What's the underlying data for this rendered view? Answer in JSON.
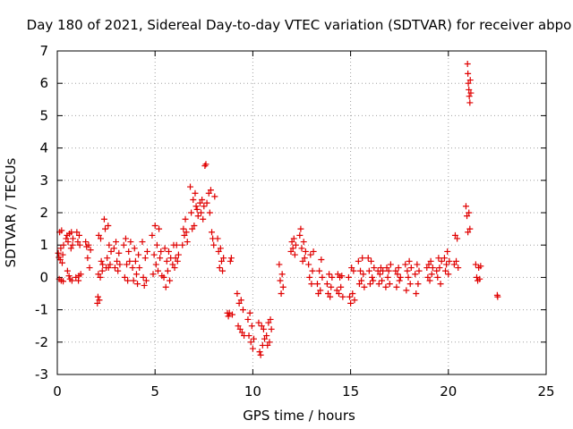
{
  "chart_data": {
    "type": "scatter",
    "title": "Day 180 of 2021, Sidereal Day-to-day VTEC variation (SDTVAR) for receiver abpo",
    "xlabel": "GPS time / hours",
    "ylabel": "SDTVAR / TECUs",
    "xlim": [
      0,
      25
    ],
    "ylim": [
      -3,
      7
    ],
    "grid": true,
    "x_ticks": [
      "0",
      "5",
      "10",
      "15",
      "20",
      "25"
    ],
    "y_ticks": [
      "-3",
      "-2",
      "-1",
      "0",
      "1",
      "2",
      "3",
      "4",
      "5",
      "6",
      "7"
    ],
    "marker": "plus",
    "marker_color": "#e00000",
    "series": [
      {
        "name": "SDTVAR",
        "points": [
          [
            0.05,
            0.75
          ],
          [
            0.08,
            0.62
          ],
          [
            0.1,
            -0.05
          ],
          [
            0.12,
            1.4
          ],
          [
            0.15,
            0.55
          ],
          [
            0.18,
            0.9
          ],
          [
            0.2,
            -0.1
          ],
          [
            0.22,
            1.45
          ],
          [
            0.25,
            0.45
          ],
          [
            0.28,
            0.7
          ],
          [
            0.3,
            -0.12
          ],
          [
            0.32,
            1.0
          ],
          [
            0.45,
            1.2
          ],
          [
            0.5,
            1.3
          ],
          [
            0.52,
            0.2
          ],
          [
            0.55,
            1.1
          ],
          [
            0.6,
            0.05
          ],
          [
            0.62,
            1.35
          ],
          [
            0.65,
            -0.05
          ],
          [
            0.7,
            0.9
          ],
          [
            0.72,
            1.4
          ],
          [
            0.75,
            -0.1
          ],
          [
            0.78,
            1.0
          ],
          [
            0.8,
            1.2
          ],
          [
            0.95,
            0.0
          ],
          [
            1.0,
            1.4
          ],
          [
            1.05,
            1.1
          ],
          [
            1.08,
            -0.1
          ],
          [
            1.1,
            0.05
          ],
          [
            1.12,
            1.3
          ],
          [
            1.15,
            1.0
          ],
          [
            1.2,
            0.1
          ],
          [
            1.45,
            1.1
          ],
          [
            1.5,
            0.95
          ],
          [
            1.55,
            0.6
          ],
          [
            1.6,
            1.0
          ],
          [
            1.65,
            0.3
          ],
          [
            1.7,
            0.85
          ],
          [
            2.05,
            -0.8
          ],
          [
            2.08,
            -0.6
          ],
          [
            2.1,
            0.1
          ],
          [
            2.12,
            1.3
          ],
          [
            2.15,
            -0.7
          ],
          [
            2.2,
            0.0
          ],
          [
            2.22,
            1.2
          ],
          [
            2.25,
            0.5
          ],
          [
            2.3,
            0.2
          ],
          [
            2.32,
            0.4
          ],
          [
            2.4,
            1.8
          ],
          [
            2.45,
            1.5
          ],
          [
            2.5,
            0.3
          ],
          [
            2.55,
            0.6
          ],
          [
            2.6,
            1.6
          ],
          [
            2.62,
            0.3
          ],
          [
            2.65,
            1.0
          ],
          [
            2.7,
            0.4
          ],
          [
            2.75,
            0.8
          ],
          [
            2.9,
            0.9
          ],
          [
            2.95,
            0.3
          ],
          [
            3.0,
            1.1
          ],
          [
            3.05,
            0.5
          ],
          [
            3.1,
            0.2
          ],
          [
            3.15,
            0.75
          ],
          [
            3.2,
            0.4
          ],
          [
            3.4,
            1.0
          ],
          [
            3.45,
            0.0
          ],
          [
            3.5,
            1.2
          ],
          [
            3.55,
            0.4
          ],
          [
            3.6,
            -0.1
          ],
          [
            3.65,
            0.8
          ],
          [
            3.7,
            0.5
          ],
          [
            3.75,
            1.1
          ],
          [
            3.85,
            0.3
          ],
          [
            3.9,
            -0.1
          ],
          [
            3.95,
            0.9
          ],
          [
            4.0,
            0.5
          ],
          [
            4.05,
            0.1
          ],
          [
            4.1,
            -0.2
          ],
          [
            4.15,
            0.7
          ],
          [
            4.2,
            0.3
          ],
          [
            4.35,
            1.1
          ],
          [
            4.4,
            0.0
          ],
          [
            4.45,
            -0.25
          ],
          [
            4.5,
            0.6
          ],
          [
            4.55,
            -0.1
          ],
          [
            4.6,
            0.8
          ],
          [
            4.85,
            1.3
          ],
          [
            4.9,
            0.1
          ],
          [
            4.95,
            0.7
          ],
          [
            5.0,
            1.6
          ],
          [
            5.05,
            0.4
          ],
          [
            5.1,
            1.0
          ],
          [
            5.15,
            0.2
          ],
          [
            5.2,
            1.5
          ],
          [
            5.25,
            0.6
          ],
          [
            5.3,
            0.8
          ],
          [
            5.35,
            0.05
          ],
          [
            5.45,
            0.0
          ],
          [
            5.5,
            0.9
          ],
          [
            5.55,
            -0.3
          ],
          [
            5.6,
            0.5
          ],
          [
            5.65,
            0.2
          ],
          [
            5.7,
            0.8
          ],
          [
            5.75,
            -0.1
          ],
          [
            5.8,
            0.6
          ],
          [
            5.9,
            0.4
          ],
          [
            5.95,
            1.0
          ],
          [
            6.0,
            0.3
          ],
          [
            6.05,
            0.6
          ],
          [
            6.1,
            1.0
          ],
          [
            6.15,
            0.5
          ],
          [
            6.2,
            0.7
          ],
          [
            6.4,
            1.0
          ],
          [
            6.45,
            1.5
          ],
          [
            6.5,
            1.3
          ],
          [
            6.55,
            1.8
          ],
          [
            6.6,
            1.4
          ],
          [
            6.65,
            1.1
          ],
          [
            6.8,
            2.8
          ],
          [
            6.85,
            2.0
          ],
          [
            6.9,
            1.5
          ],
          [
            6.95,
            2.4
          ],
          [
            7.0,
            1.6
          ],
          [
            7.05,
            2.6
          ],
          [
            7.1,
            2.2
          ],
          [
            7.15,
            2.1
          ],
          [
            7.2,
            1.9
          ],
          [
            7.3,
            2.3
          ],
          [
            7.35,
            2.0
          ],
          [
            7.4,
            2.4
          ],
          [
            7.45,
            1.8
          ],
          [
            7.5,
            2.2
          ],
          [
            7.55,
            3.45
          ],
          [
            7.6,
            3.5
          ],
          [
            7.65,
            2.3
          ],
          [
            7.75,
            2.6
          ],
          [
            7.8,
            2.0
          ],
          [
            7.85,
            2.7
          ],
          [
            7.9,
            1.4
          ],
          [
            7.95,
            1.2
          ],
          [
            8.0,
            1.0
          ],
          [
            8.05,
            2.5
          ],
          [
            8.2,
            1.2
          ],
          [
            8.25,
            0.8
          ],
          [
            8.3,
            0.3
          ],
          [
            8.35,
            0.9
          ],
          [
            8.4,
            0.5
          ],
          [
            8.45,
            0.2
          ],
          [
            8.5,
            0.6
          ],
          [
            8.7,
            -1.1
          ],
          [
            8.75,
            -1.2
          ],
          [
            8.8,
            -1.1
          ],
          [
            8.85,
            0.5
          ],
          [
            8.9,
            0.6
          ],
          [
            8.95,
            -1.15
          ],
          [
            9.2,
            -0.5
          ],
          [
            9.25,
            -1.5
          ],
          [
            9.3,
            -0.8
          ],
          [
            9.35,
            -1.6
          ],
          [
            9.4,
            -0.7
          ],
          [
            9.45,
            -1.7
          ],
          [
            9.5,
            -1.0
          ],
          [
            9.55,
            -1.8
          ],
          [
            9.75,
            -1.3
          ],
          [
            9.8,
            -1.8
          ],
          [
            9.85,
            -1.1
          ],
          [
            9.9,
            -2.0
          ],
          [
            9.95,
            -1.5
          ],
          [
            10.0,
            -2.2
          ],
          [
            10.05,
            -1.9
          ],
          [
            10.3,
            -1.4
          ],
          [
            10.35,
            -2.3
          ],
          [
            10.4,
            -2.4
          ],
          [
            10.45,
            -1.5
          ],
          [
            10.5,
            -2.1
          ],
          [
            10.55,
            -1.6
          ],
          [
            10.6,
            -1.9
          ],
          [
            10.7,
            -1.8
          ],
          [
            10.75,
            -2.1
          ],
          [
            10.8,
            -1.4
          ],
          [
            10.85,
            -2.0
          ],
          [
            10.9,
            -1.3
          ],
          [
            10.95,
            -1.6
          ],
          [
            11.35,
            0.4
          ],
          [
            11.4,
            -0.1
          ],
          [
            11.45,
            -0.5
          ],
          [
            11.5,
            0.1
          ],
          [
            11.55,
            -0.3
          ],
          [
            11.95,
            0.8
          ],
          [
            12.0,
            1.1
          ],
          [
            12.05,
            0.9
          ],
          [
            12.1,
            1.2
          ],
          [
            12.15,
            0.7
          ],
          [
            12.2,
            1.0
          ],
          [
            12.4,
            1.3
          ],
          [
            12.45,
            1.5
          ],
          [
            12.5,
            0.9
          ],
          [
            12.55,
            0.5
          ],
          [
            12.6,
            1.1
          ],
          [
            12.65,
            0.6
          ],
          [
            12.7,
            0.8
          ],
          [
            12.85,
            0.4
          ],
          [
            12.9,
            0.0
          ],
          [
            12.95,
            0.7
          ],
          [
            13.0,
            -0.2
          ],
          [
            13.05,
            0.2
          ],
          [
            13.1,
            0.8
          ],
          [
            13.3,
            -0.2
          ],
          [
            13.35,
            -0.5
          ],
          [
            13.4,
            0.2
          ],
          [
            13.45,
            -0.4
          ],
          [
            13.5,
            0.55
          ],
          [
            13.55,
            0.0
          ],
          [
            13.8,
            -0.2
          ],
          [
            13.85,
            -0.5
          ],
          [
            13.9,
            0.1
          ],
          [
            13.95,
            -0.6
          ],
          [
            14.0,
            -0.3
          ],
          [
            14.05,
            0.0
          ],
          [
            14.3,
            -0.4
          ],
          [
            14.35,
            0.1
          ],
          [
            14.4,
            -0.5
          ],
          [
            14.45,
            0.0
          ],
          [
            14.5,
            -0.3
          ],
          [
            14.55,
            0.05
          ],
          [
            14.6,
            -0.6
          ],
          [
            14.9,
            0.0
          ],
          [
            14.95,
            -0.6
          ],
          [
            15.0,
            -0.8
          ],
          [
            15.05,
            0.3
          ],
          [
            15.1,
            -0.5
          ],
          [
            15.15,
            0.2
          ],
          [
            15.2,
            -0.7
          ],
          [
            15.4,
            0.5
          ],
          [
            15.45,
            -0.2
          ],
          [
            15.5,
            0.2
          ],
          [
            15.55,
            -0.1
          ],
          [
            15.6,
            0.6
          ],
          [
            15.65,
            0.1
          ],
          [
            15.7,
            -0.3
          ],
          [
            15.9,
            0.6
          ],
          [
            15.95,
            0.2
          ],
          [
            16.0,
            -0.2
          ],
          [
            16.05,
            0.5
          ],
          [
            16.1,
            0.0
          ],
          [
            16.15,
            -0.1
          ],
          [
            16.2,
            0.3
          ],
          [
            16.4,
            0.2
          ],
          [
            16.45,
            -0.2
          ],
          [
            16.5,
            0.1
          ],
          [
            16.55,
            0.3
          ],
          [
            16.6,
            -0.1
          ],
          [
            16.65,
            0.2
          ],
          [
            16.8,
            -0.3
          ],
          [
            16.85,
            0.3
          ],
          [
            16.9,
            0.0
          ],
          [
            16.95,
            0.2
          ],
          [
            17.0,
            -0.2
          ],
          [
            17.05,
            0.4
          ],
          [
            17.3,
            0.2
          ],
          [
            17.35,
            -0.3
          ],
          [
            17.4,
            0.1
          ],
          [
            17.45,
            0.3
          ],
          [
            17.5,
            -0.1
          ],
          [
            17.55,
            0.0
          ],
          [
            17.8,
            0.4
          ],
          [
            17.85,
            -0.4
          ],
          [
            17.9,
            0.2
          ],
          [
            17.95,
            0.0
          ],
          [
            18.0,
            0.5
          ],
          [
            18.05,
            -0.2
          ],
          [
            18.1,
            0.3
          ],
          [
            18.3,
            0.1
          ],
          [
            18.35,
            -0.5
          ],
          [
            18.4,
            0.4
          ],
          [
            18.45,
            -0.2
          ],
          [
            18.5,
            0.2
          ],
          [
            18.9,
            0.3
          ],
          [
            18.95,
            0.0
          ],
          [
            19.0,
            0.4
          ],
          [
            19.05,
            -0.1
          ],
          [
            19.1,
            0.5
          ],
          [
            19.15,
            0.1
          ],
          [
            19.2,
            0.3
          ],
          [
            19.4,
            0.2
          ],
          [
            19.45,
            0.0
          ],
          [
            19.5,
            0.6
          ],
          [
            19.55,
            0.3
          ],
          [
            19.6,
            -0.2
          ],
          [
            19.65,
            0.5
          ],
          [
            19.8,
            0.6
          ],
          [
            19.85,
            0.2
          ],
          [
            19.9,
            0.4
          ],
          [
            19.95,
            0.8
          ],
          [
            20.0,
            0.1
          ],
          [
            20.05,
            0.5
          ],
          [
            20.3,
            0.4
          ],
          [
            20.35,
            1.3
          ],
          [
            20.4,
            0.5
          ],
          [
            20.45,
            1.2
          ],
          [
            20.5,
            0.3
          ],
          [
            20.9,
            2.2
          ],
          [
            20.95,
            1.9
          ],
          [
            21.0,
            1.4
          ],
          [
            21.05,
            2.0
          ],
          [
            21.1,
            1.5
          ],
          [
            20.98,
            6.6
          ],
          [
            21.0,
            6.3
          ],
          [
            21.02,
            6.0
          ],
          [
            21.05,
            5.8
          ],
          [
            21.07,
            5.6
          ],
          [
            21.1,
            5.4
          ],
          [
            21.12,
            6.1
          ],
          [
            21.15,
            5.7
          ],
          [
            21.4,
            0.4
          ],
          [
            21.45,
            0.0
          ],
          [
            21.5,
            -0.1
          ],
          [
            21.55,
            0.3
          ],
          [
            21.6,
            -0.05
          ],
          [
            21.65,
            0.35
          ],
          [
            22.5,
            -0.55
          ],
          [
            22.52,
            -0.6
          ]
        ]
      }
    ]
  }
}
